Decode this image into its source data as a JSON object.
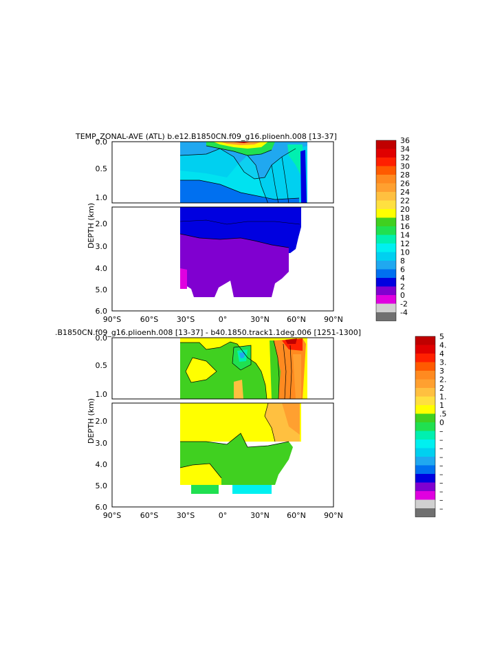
{
  "chart_data": [
    {
      "type": "heatmap",
      "title": "TEMP_ZONAL-AVE (ATL) b.e12.B1850CN.f09_g16.plioenh.008 [13-37]",
      "ylabel": "DEPTH (km)",
      "xlabel": "",
      "x_ticks": [
        "90°S",
        "60°S",
        "30°S",
        "0°",
        "30°N",
        "60°N",
        "90°N"
      ],
      "xlim": [
        -90,
        90
      ],
      "y_ticks_upper": [
        "0.0",
        "0.5",
        "1.0"
      ],
      "y_ticks_lower": [
        "2.0",
        "3.0",
        "4.0",
        "5.0",
        "6.0"
      ],
      "ylim": [
        0,
        6
      ],
      "grid": false,
      "colorbar": {
        "labels": [
          "36",
          "34",
          "32",
          "30",
          "28",
          "26",
          "24",
          "22",
          "20",
          "18",
          "16",
          "14",
          "12",
          "10",
          "8",
          "6",
          "4",
          "2",
          "0",
          "-2",
          "-4"
        ],
        "colors": [
          "#c00000",
          "#e00000",
          "#ff2000",
          "#ff5a00",
          "#ff8a20",
          "#ffa030",
          "#ffc040",
          "#ffe040",
          "#ffff00",
          "#40d020",
          "#20e050",
          "#00f0b0",
          "#00f0f0",
          "#00d0f0",
          "#20a8f0",
          "#0070f0",
          "#0000e0",
          "#8000d0",
          "#e000e0",
          "#d0d0d0",
          "#707070"
        ]
      },
      "regions": [
        {
          "depth_km": [
            0.0,
            0.1
          ],
          "value": 26
        },
        {
          "depth_km": [
            0.1,
            1.1
          ],
          "value": 10
        },
        {
          "depth_km": [
            1.1,
            2.6
          ],
          "value": 4
        },
        {
          "depth_km": [
            2.6,
            5.4
          ],
          "value": 2
        }
      ]
    },
    {
      "type": "heatmap",
      "title": ".B1850CN.f09_g16.plioenh.008 [13-37] - b40.1850.track1.1deg.006 [1251-1300]",
      "ylabel": "DEPTH (km)",
      "xlabel": "",
      "x_ticks": [
        "90°S",
        "60°S",
        "30°S",
        "0°",
        "30°N",
        "60°N",
        "90°N"
      ],
      "xlim": [
        -90,
        90
      ],
      "y_ticks_upper": [
        "0.0",
        "0.5",
        "1.0"
      ],
      "y_ticks_lower": [
        "2.0",
        "3.0",
        "4.0",
        "5.0",
        "6.0"
      ],
      "ylim": [
        0,
        6
      ],
      "grid": false,
      "colorbar": {
        "labels": [
          "5",
          "4.",
          "4",
          "3.",
          "3",
          "2.",
          "2",
          "1.",
          "1",
          ".5",
          "0",
          "–",
          "–",
          "–",
          "–",
          "–",
          "–",
          "–",
          "–",
          "–",
          "–"
        ],
        "colors": [
          "#c00000",
          "#e00000",
          "#ff2000",
          "#ff5a00",
          "#ff8a20",
          "#ffa030",
          "#ffc040",
          "#ffe040",
          "#ffff00",
          "#40d020",
          "#20e050",
          "#00f0b0",
          "#00f0f0",
          "#00d0f0",
          "#20a8f0",
          "#0070f0",
          "#0000e0",
          "#8000d0",
          "#e000e0",
          "#d0d0d0",
          "#707070"
        ]
      },
      "regions": [
        {
          "depth_km": [
            0.0,
            2.9
          ],
          "value": 1.0
        },
        {
          "depth_km": [
            2.9,
            4.2
          ],
          "value": 0.5
        },
        {
          "depth_km": [
            4.2,
            5.4
          ],
          "value": 1.0
        }
      ]
    }
  ]
}
